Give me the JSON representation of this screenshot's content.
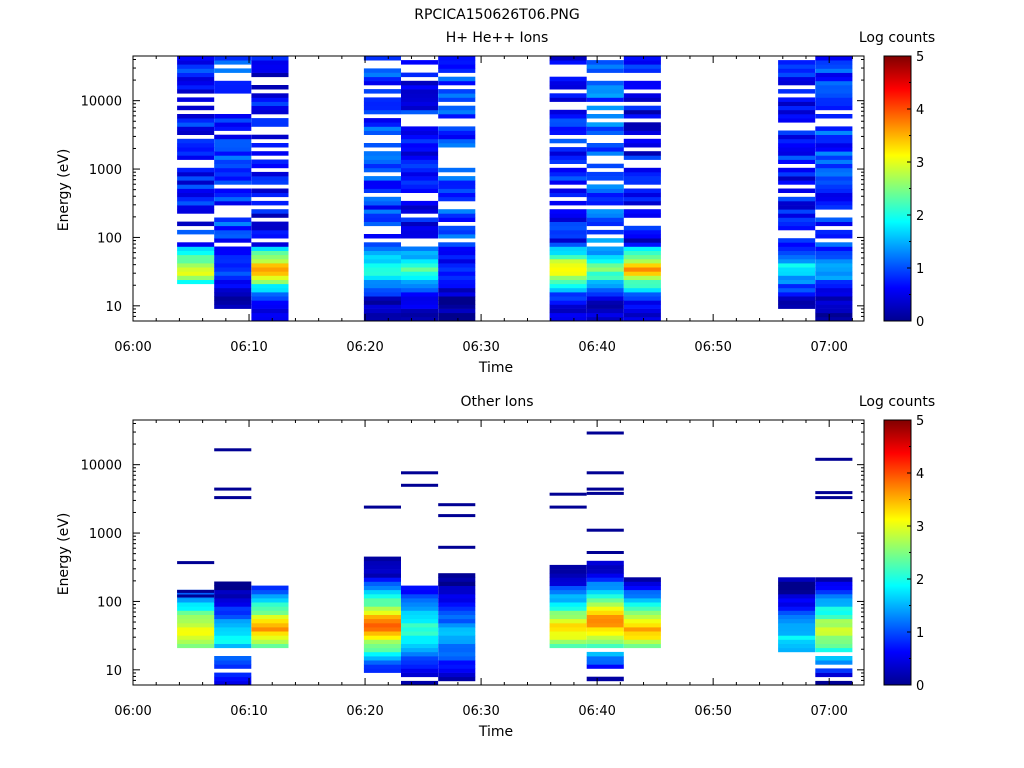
{
  "page_title": "RPCICA150626T06.PNG",
  "chart_data": [
    {
      "type": "heatmap",
      "title": "H+ He++ Ions",
      "xlabel": "Time",
      "ylabel": "Energy (eV)",
      "colorbar_label": "Log counts",
      "x_ticks": [
        "06:00",
        "06:10",
        "06:20",
        "06:30",
        "06:40",
        "06:50",
        "07:00"
      ],
      "x_range_minutes": [
        0,
        63
      ],
      "y_scale": "log",
      "y_range": [
        6,
        45000
      ],
      "y_ticks": [
        "10",
        "100",
        "1000",
        "10000"
      ],
      "colorbar_range": [
        0,
        5
      ],
      "colorbar_ticks": [
        "0",
        "1",
        "2",
        "3",
        "4",
        "5"
      ],
      "colormap": "jet",
      "columns": [
        {
          "t0": 3.8,
          "t1": 7.0,
          "e_min": 21,
          "e_max": 44000,
          "low_band_value": 3.2,
          "body_value": 0.7
        },
        {
          "t0": 7.0,
          "t1": 10.2,
          "e_min": 9,
          "e_max": 44000,
          "low_band_value": 1.1,
          "body_value": 0.9
        },
        {
          "t0": 10.2,
          "t1": 13.4,
          "e_min": 6,
          "e_max": 44000,
          "low_band_value": 3.7,
          "body_value": 0.6
        },
        {
          "t0": 19.9,
          "t1": 23.1,
          "e_min": 6,
          "e_max": 44000,
          "low_band_value": 2.3,
          "body_value": 0.9
        },
        {
          "t0": 23.1,
          "t1": 26.3,
          "e_min": 6,
          "e_max": 44000,
          "low_band_value": 2.4,
          "body_value": 0.7
        },
        {
          "t0": 26.3,
          "t1": 29.5,
          "e_min": 6,
          "e_max": 44000,
          "low_band_value": 0.8,
          "body_value": 0.9
        },
        {
          "t0": 35.9,
          "t1": 39.1,
          "e_min": 6,
          "e_max": 44000,
          "low_band_value": 3.3,
          "body_value": 0.7
        },
        {
          "t0": 39.1,
          "t1": 42.3,
          "e_min": 6,
          "e_max": 44000,
          "low_band_value": 2.6,
          "body_value": 1.1
        },
        {
          "t0": 42.3,
          "t1": 45.5,
          "e_min": 6,
          "e_max": 44000,
          "low_band_value": 3.6,
          "body_value": 0.6
        },
        {
          "t0": 55.6,
          "t1": 58.8,
          "e_min": 9,
          "e_max": 44000,
          "low_band_value": 1.9,
          "body_value": 0.7
        },
        {
          "t0": 58.8,
          "t1": 62.0,
          "e_min": 6,
          "e_max": 44000,
          "low_band_value": 1.6,
          "body_value": 0.9
        }
      ]
    },
    {
      "type": "heatmap",
      "title": "Other Ions",
      "xlabel": "Time",
      "ylabel": "Energy (eV)",
      "colorbar_label": "Log counts",
      "x_ticks": [
        "06:00",
        "06:10",
        "06:20",
        "06:30",
        "06:40",
        "06:50",
        "07:00"
      ],
      "x_range_minutes": [
        0,
        63
      ],
      "y_scale": "log",
      "y_range": [
        6,
        45000
      ],
      "y_ticks": [
        "10",
        "100",
        "1000",
        "10000"
      ],
      "colorbar_range": [
        0,
        5
      ],
      "colorbar_ticks": [
        "0",
        "1",
        "2",
        "3",
        "4",
        "5"
      ],
      "colormap": "jet",
      "columns": [
        {
          "t0": 3.8,
          "t1": 7.0,
          "e_min": 20,
          "e_max": 150,
          "peak_energy": 38,
          "peak_value": 3.3,
          "sparse_lines": [
            370,
            140,
            120
          ]
        },
        {
          "t0": 7.0,
          "t1": 10.2,
          "e_min": 6,
          "e_max": 190,
          "peak_energy": 28,
          "peak_value": 1.9,
          "sparse_lines": [
            16500,
            4400,
            3300
          ]
        },
        {
          "t0": 10.2,
          "t1": 13.4,
          "e_min": 20,
          "e_max": 160,
          "peak_energy": 40,
          "peak_value": 3.6,
          "sparse_lines": []
        },
        {
          "t0": 19.9,
          "t1": 23.1,
          "e_min": 9,
          "e_max": 480,
          "peak_energy": 45,
          "peak_value": 4.0,
          "sparse_lines": [
            2400
          ]
        },
        {
          "t0": 23.1,
          "t1": 26.3,
          "e_min": 6,
          "e_max": 160,
          "peak_energy": 40,
          "peak_value": 2.2,
          "sparse_lines": [
            7600,
            5000
          ]
        },
        {
          "t0": 26.3,
          "t1": 29.5,
          "e_min": 6,
          "e_max": 270,
          "peak_energy": 32,
          "peak_value": 1.6,
          "sparse_lines": [
            2600,
            1800,
            620
          ]
        },
        {
          "t0": 35.9,
          "t1": 39.1,
          "e_min": 20,
          "e_max": 360,
          "peak_energy": 40,
          "peak_value": 3.4,
          "sparse_lines": [
            3700,
            2400
          ]
        },
        {
          "t0": 39.1,
          "t1": 42.3,
          "e_min": 6,
          "e_max": 420,
          "peak_energy": 50,
          "peak_value": 3.9,
          "sparse_lines": [
            29000,
            7600,
            4400,
            3800,
            1100,
            520
          ]
        },
        {
          "t0": 42.3,
          "t1": 45.5,
          "e_min": 20,
          "e_max": 230,
          "peak_energy": 38,
          "peak_value": 3.6,
          "sparse_lines": []
        },
        {
          "t0": 55.6,
          "t1": 58.8,
          "e_min": 15,
          "e_max": 230,
          "peak_energy": 28,
          "peak_value": 1.8,
          "sparse_lines": []
        },
        {
          "t0": 58.8,
          "t1": 62.0,
          "e_min": 6,
          "e_max": 210,
          "peak_energy": 38,
          "peak_value": 3.1,
          "sparse_lines": [
            12000,
            3900,
            3300
          ]
        }
      ]
    }
  ]
}
